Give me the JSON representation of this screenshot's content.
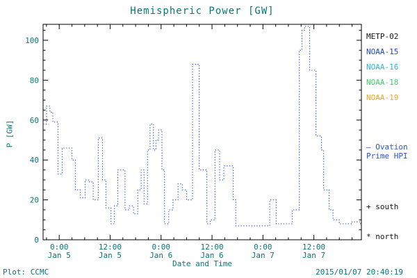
{
  "title": "Hemispheric Power [GW]",
  "colors": {
    "text": "#067878",
    "frame": "#000000",
    "hpi_line": "#2a55cf",
    "marker_text": "#141414",
    "background": "#ffffff"
  },
  "legend": {
    "satellites": [
      {
        "label": "METP-02",
        "color": "#141414"
      },
      {
        "label": "NOAA-15",
        "color": "#2244cc"
      },
      {
        "label": "NOAA-16",
        "color": "#29b6e8"
      },
      {
        "label": "NOAA-18",
        "color": "#3ecf6e"
      },
      {
        "label": "NOAA-19",
        "color": "#f5a623"
      }
    ],
    "ovation_line1": "– Ovation",
    "ovation_line2": "Prime HPI",
    "south": "+ south",
    "north": "* north"
  },
  "footer": {
    "left": "Plot: CCMC",
    "right": "2015/01/07 20:40:19"
  },
  "chart_data": {
    "type": "line",
    "title": "Hemispheric Power [GW]",
    "xlabel": "Date and Time",
    "ylabel": "P [GW]",
    "ylim": [
      0,
      108
    ],
    "xlim": [
      -3.8,
      71.2
    ],
    "x_unit": "hours from 2015-01-05 00:00",
    "grid": false,
    "legend_position": "right",
    "y_ticks": [
      0,
      20,
      40,
      60,
      80,
      100
    ],
    "y_minor_step": 5,
    "x_minor_step": 3,
    "x_ticks": [
      {
        "t": 0,
        "time": "0:00",
        "date": "Jan 5"
      },
      {
        "t": 12,
        "time": "12:00",
        "date": "Jan 5"
      },
      {
        "t": 24,
        "time": "0:00",
        "date": "Jan 6"
      },
      {
        "t": 36,
        "time": "12:00",
        "date": "Jan 6"
      },
      {
        "t": 48,
        "time": "0:00",
        "date": "Jan 7"
      },
      {
        "t": 60,
        "time": "12:00",
        "date": "Jan 7"
      }
    ],
    "series": [
      {
        "name": "Ovation Prime HPI",
        "style": "dotted-step",
        "color": "#2a55cf",
        "points": [
          [
            -3.8,
            58
          ],
          [
            -3.0,
            67
          ],
          [
            -2.2,
            64
          ],
          [
            -1.5,
            59
          ],
          [
            -0.3,
            33
          ],
          [
            0.7,
            46
          ],
          [
            3.0,
            40
          ],
          [
            3.8,
            25
          ],
          [
            5.0,
            21
          ],
          [
            6.1,
            30
          ],
          [
            7.1,
            29
          ],
          [
            8.0,
            20
          ],
          [
            9.2,
            51
          ],
          [
            10.2,
            30
          ],
          [
            11.0,
            16
          ],
          [
            12.2,
            8
          ],
          [
            13.0,
            17
          ],
          [
            13.8,
            35
          ],
          [
            15.5,
            15
          ],
          [
            16.5,
            17
          ],
          [
            17.5,
            13
          ],
          [
            18.5,
            25
          ],
          [
            19.3,
            35
          ],
          [
            20.0,
            18
          ],
          [
            20.8,
            45
          ],
          [
            21.4,
            58
          ],
          [
            22.2,
            45
          ],
          [
            22.8,
            50
          ],
          [
            23.4,
            55
          ],
          [
            24.2,
            35
          ],
          [
            24.8,
            8
          ],
          [
            25.8,
            15
          ],
          [
            26.8,
            20
          ],
          [
            28.0,
            28
          ],
          [
            29.0,
            25
          ],
          [
            30.0,
            20
          ],
          [
            31.4,
            88
          ],
          [
            33.0,
            35
          ],
          [
            34.8,
            8
          ],
          [
            35.6,
            10
          ],
          [
            36.7,
            45
          ],
          [
            37.8,
            30
          ],
          [
            38.8,
            37
          ],
          [
            41.0,
            20
          ],
          [
            41.6,
            7
          ],
          [
            49.6,
            20
          ],
          [
            51.1,
            8
          ],
          [
            54.9,
            15
          ],
          [
            56.6,
            95
          ],
          [
            57.2,
            105
          ],
          [
            57.8,
            107
          ],
          [
            59.0,
            85
          ],
          [
            60.5,
            52
          ],
          [
            61.8,
            45
          ],
          [
            62.3,
            25
          ],
          [
            63.6,
            15
          ],
          [
            64.5,
            10
          ],
          [
            66.0,
            8
          ],
          [
            69.0,
            9
          ],
          [
            71.0,
            8
          ]
        ]
      }
    ]
  }
}
